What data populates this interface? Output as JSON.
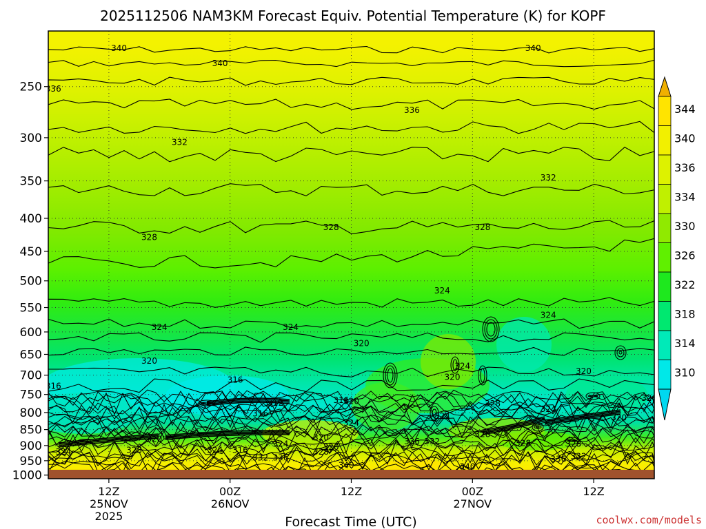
{
  "chart_data": {
    "type": "heatmap",
    "title": "2025112506 NAM3KM Forecast Equiv. Potential Temperature (K) for KOPF",
    "xlabel": "Forecast Time (UTC)",
    "ylabel": "",
    "credit": "coolwx.com/models",
    "y_scale": "log-pressure",
    "ylim": [
      1013,
      205
    ],
    "y_ticks": [
      250,
      300,
      350,
      400,
      450,
      500,
      550,
      600,
      650,
      700,
      750,
      800,
      850,
      900,
      950,
      1000
    ],
    "xlim": [
      "2025-11-25 06:00",
      "2025-11-27 18:00"
    ],
    "x_ticks": [
      {
        "time": "2025-11-25 12:00",
        "lines": [
          "12Z",
          "25NOV",
          "2025"
        ]
      },
      {
        "time": "2025-11-26 00:00",
        "lines": [
          "00Z",
          "26NOV"
        ]
      },
      {
        "time": "2025-11-26 12:00",
        "lines": [
          "12Z"
        ]
      },
      {
        "time": "2025-11-27 00:00",
        "lines": [
          "00Z",
          "27NOV"
        ]
      },
      {
        "time": "2025-11-27 12:00",
        "lines": [
          "12Z"
        ]
      }
    ],
    "grid": "dotted",
    "colorbar": {
      "placement": "right",
      "labels": [
        "344",
        "340",
        "336",
        "334",
        "330",
        "326",
        "322",
        "318",
        "314",
        "310"
      ],
      "colors": [
        "#FFE400",
        "#F2F000",
        "#DDF200",
        "#C0F000",
        "#90EA00",
        "#60F000",
        "#1EE81E",
        "#00E870",
        "#00EAB8",
        "#00E8E8"
      ],
      "extend": [
        "#F0B000",
        "#00D8F0"
      ]
    },
    "contour_labels": [
      {
        "text": "340",
        "time": "2025-11-25 13:00",
        "p": 218
      },
      {
        "text": "340",
        "time": "2025-11-27 06:00",
        "p": 218
      },
      {
        "text": "340",
        "time": "2025-11-25 23:00",
        "p": 230
      },
      {
        "text": "336",
        "time": "2025-11-25 06:30",
        "p": 252
      },
      {
        "text": "336",
        "time": "2025-11-26 18:00",
        "p": 272
      },
      {
        "text": "332",
        "time": "2025-11-25 19:00",
        "p": 305
      },
      {
        "text": "332",
        "time": "2025-11-27 07:30",
        "p": 346
      },
      {
        "text": "328",
        "time": "2025-11-25 16:00",
        "p": 428
      },
      {
        "text": "328",
        "time": "2025-11-26 10:00",
        "p": 413
      },
      {
        "text": "328",
        "time": "2025-11-27 01:00",
        "p": 413
      },
      {
        "text": "324",
        "time": "2025-11-27 07:30",
        "p": 565
      },
      {
        "text": "324",
        "time": "2025-11-26 21:00",
        "p": 518
      },
      {
        "text": "324",
        "time": "2025-11-25 17:00",
        "p": 590
      },
      {
        "text": "324",
        "time": "2025-11-26 06:00",
        "p": 590
      },
      {
        "text": "320",
        "time": "2025-11-25 16:00",
        "p": 665
      },
      {
        "text": "320",
        "time": "2025-11-26 13:00",
        "p": 625
      },
      {
        "text": "320",
        "time": "2025-11-27 11:00",
        "p": 690
      },
      {
        "text": "316",
        "time": "2025-11-25 06:30",
        "p": 728
      },
      {
        "text": "316",
        "time": "2025-11-26 00:30",
        "p": 712
      },
      {
        "text": "312",
        "time": "2025-11-26 04:30",
        "p": 773
      },
      {
        "text": "316",
        "time": "2025-11-26 03:00",
        "p": 803
      },
      {
        "text": "316",
        "time": "2025-11-26 11:00",
        "p": 765
      },
      {
        "text": "320",
        "time": "2025-11-26 12:00",
        "p": 768
      },
      {
        "text": "324",
        "time": "2025-11-26 12:00",
        "p": 830
      },
      {
        "text": "320",
        "time": "2025-11-25 16:30",
        "p": 880
      },
      {
        "text": "328",
        "time": "2025-11-25 14:30",
        "p": 915
      },
      {
        "text": "324",
        "time": "2025-11-25 07:30",
        "p": 920
      },
      {
        "text": "324",
        "time": "2025-11-26 05:00",
        "p": 895
      },
      {
        "text": "324",
        "time": "2025-11-25 22:30",
        "p": 915
      },
      {
        "text": "316",
        "time": "2025-11-26 01:00",
        "p": 915
      },
      {
        "text": "332",
        "time": "2025-11-26 03:00",
        "p": 940
      },
      {
        "text": "336",
        "time": "2025-11-26 05:00",
        "p": 940
      },
      {
        "text": "328",
        "time": "2025-11-26 09:00",
        "p": 920
      },
      {
        "text": "320",
        "time": "2025-11-26 09:00",
        "p": 875
      },
      {
        "text": "320",
        "time": "2025-11-26 10:00",
        "p": 905
      },
      {
        "text": "340",
        "time": "2025-11-26 11:30",
        "p": 965
      },
      {
        "text": "336",
        "time": "2025-11-26 18:00",
        "p": 887
      },
      {
        "text": "332",
        "time": "2025-11-26 20:00",
        "p": 887
      },
      {
        "text": "324",
        "time": "2025-11-26 21:00",
        "p": 810
      },
      {
        "text": "324",
        "time": "2025-11-26 23:00",
        "p": 678
      },
      {
        "text": "320",
        "time": "2025-11-26 22:00",
        "p": 705
      },
      {
        "text": "328",
        "time": "2025-11-27 02:00",
        "p": 775
      },
      {
        "text": "328",
        "time": "2025-11-27 01:00",
        "p": 865
      },
      {
        "text": "328",
        "time": "2025-11-27 05:00",
        "p": 893
      },
      {
        "text": "324",
        "time": "2025-11-27 07:30",
        "p": 790
      },
      {
        "text": "320",
        "time": "2025-11-27 14:30",
        "p": 815
      },
      {
        "text": "324",
        "time": "2025-11-27 17:30",
        "p": 760
      },
      {
        "text": "336",
        "time": "2025-11-27 08:30",
        "p": 945
      },
      {
        "text": "332",
        "time": "2025-11-27 10:30",
        "p": 935
      },
      {
        "text": "328",
        "time": "2025-11-27 10:00",
        "p": 895
      },
      {
        "text": "340",
        "time": "2025-11-26 23:30",
        "p": 970
      }
    ]
  }
}
